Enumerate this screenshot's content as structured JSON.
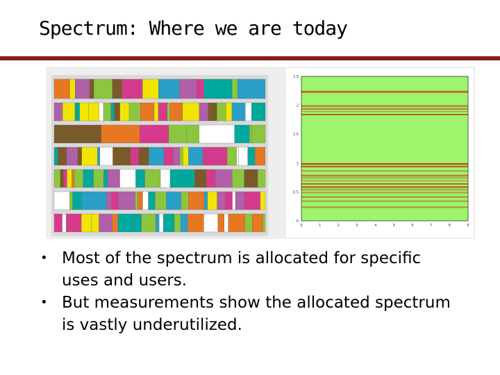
{
  "slide": {
    "title": "Spectrum: Where we are today"
  },
  "bullets": [
    {
      "marker": "•",
      "text": "Most of the spectrum is allocated for specific uses and users."
    },
    {
      "marker": "•",
      "text": "But measurements show the allocated spectrum is vastly underutilized."
    }
  ],
  "figure": {
    "allocation_chart": {
      "palette": [
        "#d63a8c",
        "#2aa0c8",
        "#f2e600",
        "#8cc63f",
        "#b05fa8",
        "#e87722",
        "#ffffff",
        "#7a5a2a",
        "#00a99d"
      ]
    },
    "occupancy_plot": {
      "background_color": "#9cf56b",
      "band_color": "#c4461c",
      "ylim": [
        0,
        2.5
      ],
      "xlim": [
        0,
        9
      ],
      "yticks": [
        "0",
        "0.5",
        "1",
        "1.5",
        "2",
        "2.5"
      ],
      "xticks": [
        "0",
        "1",
        "2",
        "3",
        "4",
        "5",
        "6",
        "7",
        "8",
        "9"
      ]
    }
  }
}
